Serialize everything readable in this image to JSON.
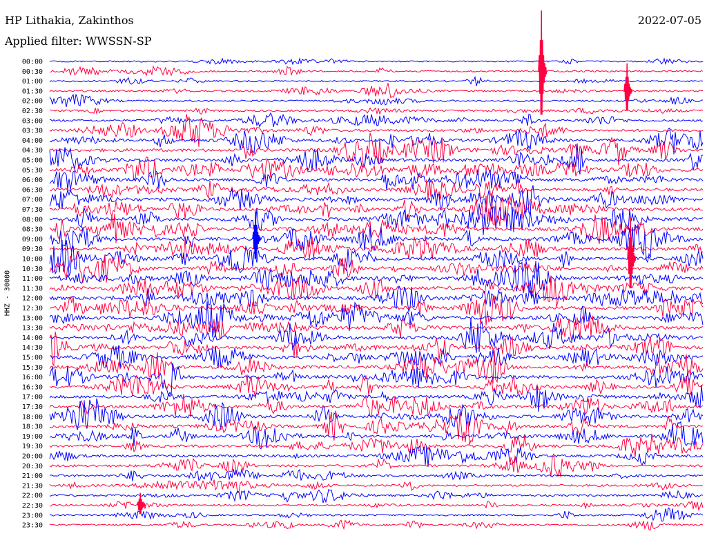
{
  "header": {
    "station": "HP Lithakia, Zakinthos",
    "filter": "Applied filter: WWSSN-SP",
    "date": "2022-07-05"
  },
  "colors": {
    "trace_a": "#0000ff",
    "trace_b": "#ff0040",
    "background": "#ffffff",
    "text": "#000000"
  },
  "chart_data": {
    "type": "line",
    "ylabel": "HHZ - 30000",
    "grid": false,
    "row_labels": [
      "00:00",
      "00:30",
      "01:00",
      "01:30",
      "02:00",
      "02:30",
      "03:00",
      "03:30",
      "04:00",
      "04:30",
      "05:00",
      "05:30",
      "06:00",
      "06:30",
      "07:00",
      "07:30",
      "08:00",
      "08:30",
      "09:00",
      "09:30",
      "10:00",
      "10:30",
      "11:00",
      "11:30",
      "12:00",
      "12:30",
      "13:00",
      "13:30",
      "14:00",
      "14:30",
      "15:00",
      "15:30",
      "16:00",
      "16:30",
      "17:00",
      "17:30",
      "18:00",
      "18:30",
      "19:00",
      "19:30",
      "20:00",
      "20:30",
      "21:00",
      "21:30",
      "22:00",
      "22:30",
      "23:00",
      "23:30"
    ],
    "row_activity": [
      0.15,
      0.2,
      0.2,
      0.3,
      0.3,
      0.35,
      0.45,
      0.6,
      0.8,
      0.85,
      0.9,
      0.9,
      0.85,
      0.8,
      0.9,
      0.9,
      0.95,
      1.0,
      1.0,
      0.95,
      0.95,
      0.9,
      0.95,
      0.95,
      1.0,
      0.95,
      1.0,
      0.95,
      0.95,
      0.9,
      0.9,
      0.9,
      0.9,
      0.9,
      0.85,
      0.85,
      0.9,
      0.85,
      0.75,
      0.65,
      0.6,
      0.55,
      0.45,
      0.45,
      0.4,
      0.35,
      0.3,
      0.3
    ]
  }
}
